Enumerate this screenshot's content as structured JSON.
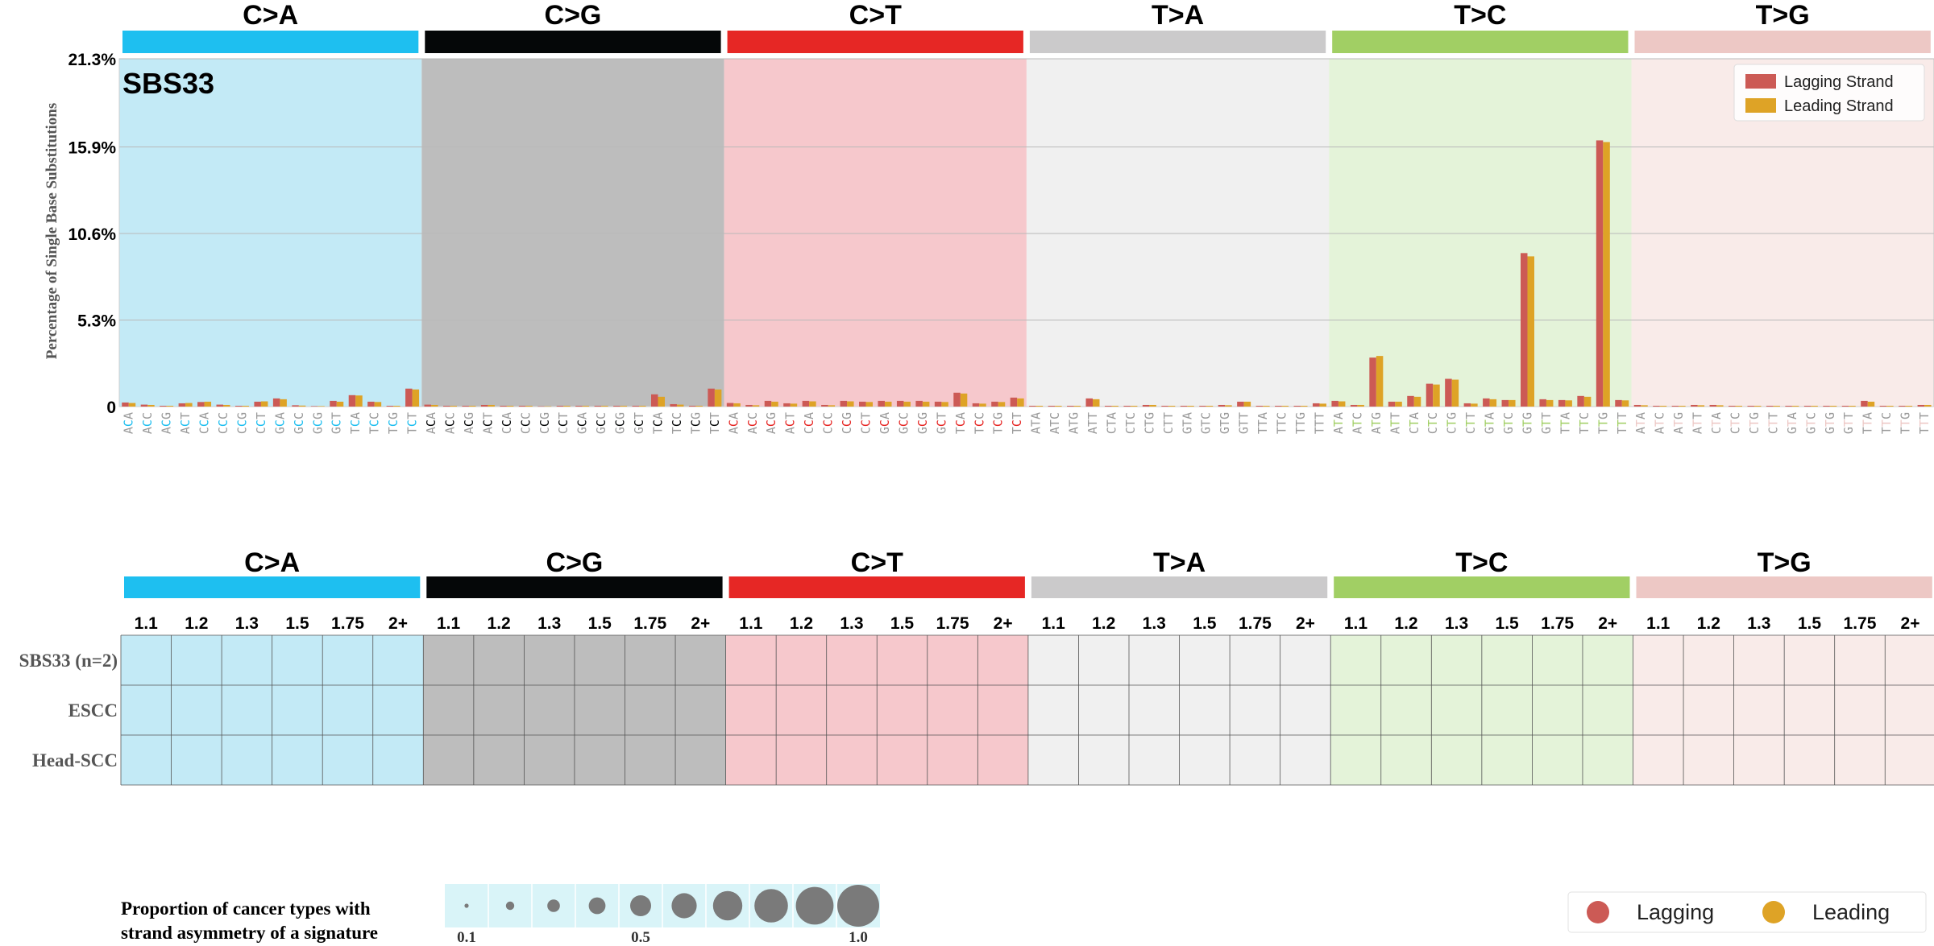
{
  "chart_data": {
    "type": "bar",
    "title": "SBS33",
    "ylabel": "Percentage of Single Base Substitutions",
    "ylim": [
      0,
      21.3
    ],
    "yticks": [
      "0",
      "5.3%",
      "10.6%",
      "15.9%",
      "21.3%"
    ],
    "ytick_values": [
      0,
      5.3,
      10.6,
      15.9,
      21.3
    ],
    "grid": true,
    "legend_position": "top-right",
    "mutation_types": [
      "C>A",
      "C>G",
      "C>T",
      "T>A",
      "T>C",
      "T>G"
    ],
    "type_colors": [
      "#1ebff0",
      "#050708",
      "#e62725",
      "#cbcacb",
      "#a1cf64",
      "#edc8c5"
    ],
    "panel_colors": [
      "#c3eaf6",
      "#bdbdbd",
      "#f6c8cc",
      "#f0f0f0",
      "#e4f3d9",
      "#f9ebe9"
    ],
    "contexts_5p": [
      "A",
      "A",
      "A",
      "A",
      "C",
      "C",
      "C",
      "C",
      "G",
      "G",
      "G",
      "G",
      "T",
      "T",
      "T",
      "T"
    ],
    "contexts_3p": [
      "A",
      "C",
      "G",
      "T",
      "A",
      "C",
      "G",
      "T",
      "A",
      "C",
      "G",
      "T",
      "A",
      "C",
      "G",
      "T"
    ],
    "series": [
      {
        "name": "Lagging Strand",
        "color": "#cc5a55",
        "values": [
          0.25,
          0.12,
          0.05,
          0.2,
          0.28,
          0.12,
          0.05,
          0.3,
          0.5,
          0.08,
          0.03,
          0.35,
          0.7,
          0.3,
          0.05,
          1.1,
          0.12,
          0.05,
          0.05,
          0.1,
          0.05,
          0.05,
          0.02,
          0.05,
          0.05,
          0.05,
          0.05,
          0.05,
          0.75,
          0.15,
          0.05,
          1.1,
          0.22,
          0.1,
          0.35,
          0.2,
          0.35,
          0.1,
          0.35,
          0.3,
          0.35,
          0.35,
          0.35,
          0.3,
          0.85,
          0.2,
          0.3,
          0.55,
          0.05,
          0.05,
          0.05,
          0.5,
          0.05,
          0.05,
          0.1,
          0.05,
          0.05,
          0.05,
          0.1,
          0.3,
          0.05,
          0.05,
          0.05,
          0.2,
          0.35,
          0.1,
          3.0,
          0.3,
          0.65,
          1.4,
          1.7,
          0.2,
          0.5,
          0.4,
          9.4,
          0.45,
          0.4,
          0.65,
          16.3,
          0.4,
          0.1,
          0.05,
          0.05,
          0.1,
          0.1,
          0.05,
          0.05,
          0.05,
          0.05,
          0.05,
          0.05,
          0.05,
          0.35,
          0.05,
          0.05,
          0.1
        ]
      },
      {
        "name": "Leading Strand",
        "color": "#dea326",
        "values": [
          0.22,
          0.1,
          0.05,
          0.22,
          0.3,
          0.1,
          0.05,
          0.32,
          0.45,
          0.06,
          0.03,
          0.3,
          0.68,
          0.28,
          0.05,
          1.05,
          0.1,
          0.05,
          0.05,
          0.1,
          0.05,
          0.05,
          0.02,
          0.05,
          0.05,
          0.05,
          0.05,
          0.05,
          0.6,
          0.12,
          0.05,
          1.05,
          0.2,
          0.08,
          0.3,
          0.18,
          0.32,
          0.08,
          0.32,
          0.28,
          0.3,
          0.3,
          0.3,
          0.28,
          0.8,
          0.18,
          0.28,
          0.5,
          0.05,
          0.05,
          0.05,
          0.45,
          0.05,
          0.05,
          0.1,
          0.05,
          0.05,
          0.05,
          0.08,
          0.3,
          0.05,
          0.05,
          0.05,
          0.18,
          0.32,
          0.1,
          3.1,
          0.3,
          0.6,
          1.35,
          1.65,
          0.18,
          0.45,
          0.4,
          9.2,
          0.4,
          0.38,
          0.6,
          16.2,
          0.38,
          0.08,
          0.05,
          0.05,
          0.08,
          0.08,
          0.05,
          0.05,
          0.05,
          0.05,
          0.05,
          0.05,
          0.05,
          0.3,
          0.05,
          0.05,
          0.1
        ]
      }
    ],
    "bubble_table": {
      "columns": [
        "1.1",
        "1.2",
        "1.3",
        "1.5",
        "1.75",
        "2+"
      ],
      "rows": [
        "SBS33 (n=2)",
        "ESCC",
        "Head-SCC"
      ]
    },
    "size_legend": {
      "title_line1": "Proportion of cancer types with",
      "title_line2": "strand asymmetry of a signature",
      "proportions": [
        0.1,
        0.2,
        0.3,
        0.4,
        0.5,
        0.6,
        0.7,
        0.8,
        0.9,
        1.0
      ],
      "tick_labels": [
        "0.1",
        "0.5",
        "1.0"
      ],
      "tick_proportions": [
        0.1,
        0.5,
        1.0
      ],
      "bg_color": "#d9f4f8"
    },
    "color_legend": {
      "items": [
        {
          "label": "Lagging",
          "color": "#cc5a55"
        },
        {
          "label": "Leading",
          "color": "#dea326"
        }
      ]
    }
  }
}
